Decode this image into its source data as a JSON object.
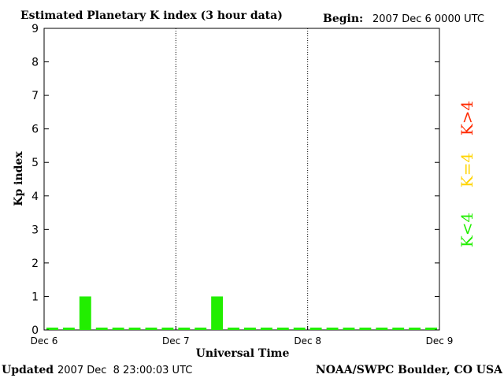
{
  "header": {
    "title": "Estimated Planetary K index (3 hour data)",
    "begin_label": "Begin:",
    "begin_value": "2007 Dec 6 0000 UTC"
  },
  "footer": {
    "updated_label": "Updated",
    "updated_value": "2007 Dec  8 23:00:03 UTC",
    "credit": "NOAA/SWPC Boulder, CO USA"
  },
  "legend": [
    {
      "text": "K>4",
      "color": "#ff2a00"
    },
    {
      "text": "K=4",
      "color": "#ffd400"
    },
    {
      "text": "K<4",
      "color": "#22ee00"
    }
  ],
  "chart_data": {
    "type": "bar",
    "xlabel": "Universal Time",
    "ylabel": "Kp index",
    "ylim": [
      0,
      9
    ],
    "yticks": [
      0,
      1,
      2,
      3,
      4,
      5,
      6,
      7,
      8,
      9
    ],
    "xlim": [
      0,
      72
    ],
    "xticks": [
      {
        "hour": 0,
        "label": "Dec 6"
      },
      {
        "hour": 24,
        "label": "Dec 7"
      },
      {
        "hour": 48,
        "label": "Dec 8"
      },
      {
        "hour": 72,
        "label": "Dec 9"
      }
    ],
    "day_dividers": [
      24,
      48
    ],
    "bar_hours": 3,
    "series": [
      {
        "values": [
          0,
          0,
          1,
          0,
          0,
          0,
          0,
          0,
          0,
          0,
          1,
          0,
          0,
          0,
          0,
          0,
          0,
          0,
          0,
          0,
          0,
          0,
          0,
          0
        ],
        "color": "#22ee00"
      }
    ]
  }
}
